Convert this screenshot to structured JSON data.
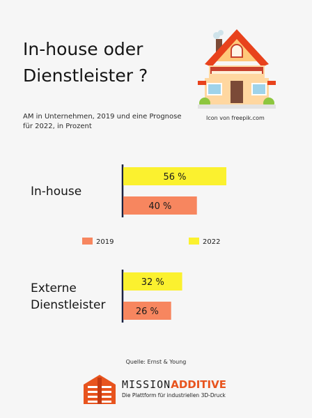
{
  "header": {
    "title_line1": "In-house oder",
    "title_line2": "Dienstleister ?",
    "subtitle_line1": "AM in Unternehmen, 2019 und eine Prognose",
    "subtitle_line2": "für 2022, in Prozent",
    "icon_credit": "Icon von freepik.com"
  },
  "footer": {
    "source": "Quelle: Ernst & Young",
    "brand_part1": "MISSION",
    "brand_part2": "ADDITIVE",
    "tagline": "Die Plattform für industriellen 3D-Druck"
  },
  "colors": {
    "series_2022": "#fbf12f",
    "series_2019": "#f7865f",
    "axis": "#1a2140",
    "brand_orange": "#e8541e"
  },
  "icons": [
    "house-icon",
    "mission-additive-logo-icon"
  ],
  "chart_data": {
    "type": "bar",
    "orientation": "horizontal",
    "categories": [
      {
        "label_lines": [
          "In-house"
        ]
      },
      {
        "label_lines": [
          "Externe",
          "Dienstleister"
        ]
      }
    ],
    "series": [
      {
        "name": "2022",
        "color": "#fbf12f",
        "values": [
          56,
          32
        ]
      },
      {
        "name": "2019",
        "color": "#f7865f",
        "values": [
          40,
          26
        ]
      }
    ],
    "value_suffix": " %",
    "legend": {
      "position": "between-groups",
      "order": [
        "2019",
        "2022"
      ]
    },
    "grid": false,
    "xlim": [
      0,
      100
    ]
  }
}
